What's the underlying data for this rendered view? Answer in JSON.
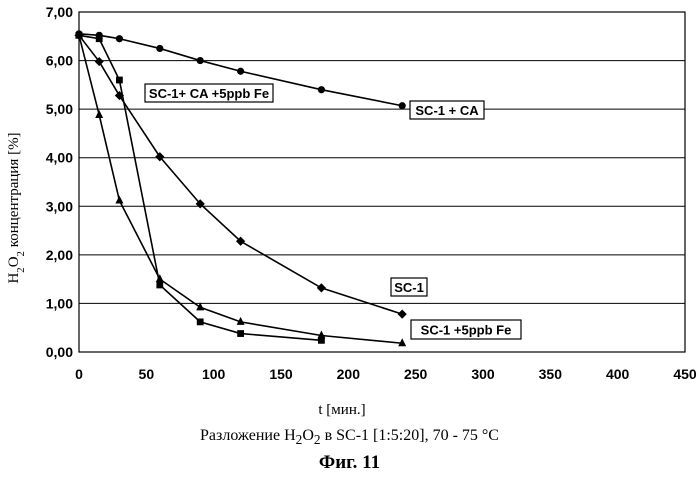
{
  "chart_data": {
    "type": "line",
    "xlabel": "t [мин.]",
    "ylabel": "H2O2 концентрация [%]",
    "xlim": [
      0,
      450
    ],
    "ylim": [
      0,
      7
    ],
    "xticks": [
      "0",
      "50",
      "100",
      "150",
      "200",
      "250",
      "300",
      "350",
      "400",
      "450"
    ],
    "yticks": [
      "0,00",
      "1,00",
      "2,00",
      "3,00",
      "4,00",
      "5,00",
      "6,00",
      "7,00"
    ],
    "grid": "horizontal",
    "series": [
      {
        "name": "SC-1 + CA",
        "marker": "circle",
        "x": [
          0,
          15,
          30,
          60,
          90,
          120,
          180,
          240
        ],
        "y": [
          6.55,
          6.52,
          6.45,
          6.25,
          6.0,
          5.78,
          5.4,
          5.07
        ]
      },
      {
        "name": "SC-1",
        "marker": "diamond",
        "x": [
          0,
          15,
          30,
          60,
          90,
          120,
          180,
          240
        ],
        "y": [
          6.52,
          5.98,
          5.28,
          4.02,
          3.05,
          2.28,
          1.32,
          0.78
        ]
      },
      {
        "name": "SC-1 + CA + 5ppb Fe",
        "marker": "square",
        "x": [
          0,
          15,
          30,
          60,
          90,
          120,
          180
        ],
        "y": [
          6.52,
          6.45,
          5.6,
          1.38,
          0.62,
          0.38,
          0.24
        ]
      },
      {
        "name": "SC-1 +5ppb Fe",
        "marker": "triangle",
        "x": [
          0,
          15,
          30,
          60,
          90,
          120,
          180,
          240
        ],
        "y": [
          6.52,
          4.88,
          3.12,
          1.5,
          0.92,
          0.62,
          0.34,
          0.18
        ]
      }
    ]
  },
  "labels": {
    "sc1_ca": "SC-1 + CA",
    "sc1": "SC-1",
    "sc1_ca_fe": "SC-1+ CA +5ppb Fe",
    "sc1_fe": "SC-1 +5ppb Fe"
  },
  "caption": "Разложение H2O2 в SC-1 [1:5:20], 70 - 75 °C",
  "figure": "Фиг. 11"
}
